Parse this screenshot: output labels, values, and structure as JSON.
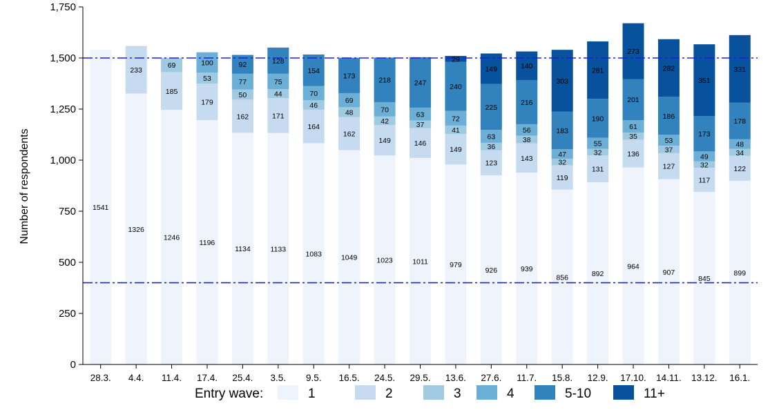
{
  "chart_data": {
    "type": "bar",
    "stacked": true,
    "ylabel": "Number of respondents",
    "xlabel": "",
    "ylim": [
      0,
      1750
    ],
    "yticks": [
      0,
      250,
      500,
      750,
      1000,
      1250,
      1500,
      1750
    ],
    "ytick_labels": [
      "0",
      "250",
      "500",
      "750",
      "1,000",
      "1,250",
      "1,500",
      "1,750"
    ],
    "reference_lines": [
      1500,
      400
    ],
    "categories": [
      "28.3.",
      "4.4.",
      "11.4.",
      "17.4.",
      "25.4.",
      "3.5.",
      "9.5.",
      "16.5.",
      "24.5.",
      "29.5.",
      "13.6.",
      "27.6.",
      "11.7.",
      "15.8.",
      "12.9.",
      "17.10.",
      "14.11.",
      "13.12.",
      "16.1."
    ],
    "legend_title": "Entry wave:",
    "legend_position": "bottom",
    "series": [
      {
        "name": "1",
        "color": "#eef3fc",
        "values": [
          1541,
          1326,
          1246,
          1196,
          1134,
          1133,
          1083,
          1049,
          1023,
          1011,
          979,
          926,
          939,
          856,
          892,
          964,
          907,
          845,
          899
        ]
      },
      {
        "name": "2",
        "color": "#c7dbf0",
        "values": [
          0,
          233,
          185,
          179,
          162,
          171,
          164,
          162,
          149,
          146,
          149,
          123,
          143,
          119,
          131,
          136,
          127,
          117,
          122
        ]
      },
      {
        "name": "3",
        "color": "#9fcae1",
        "values": [
          0,
          0,
          69,
          53,
          50,
          44,
          46,
          48,
          42,
          37,
          41,
          36,
          38,
          32,
          32,
          35,
          37,
          32,
          34
        ]
      },
      {
        "name": "4",
        "color": "#6baed6",
        "values": [
          0,
          0,
          0,
          100,
          77,
          75,
          70,
          69,
          70,
          63,
          72,
          63,
          56,
          47,
          55,
          61,
          53,
          49,
          48
        ]
      },
      {
        "name": "5-10",
        "color": "#3182bd",
        "values": [
          0,
          0,
          0,
          0,
          92,
          128,
          154,
          173,
          218,
          247,
          240,
          225,
          216,
          183,
          190,
          201,
          186,
          173,
          178
        ]
      },
      {
        "name": "11+",
        "color": "#08519c",
        "values": [
          0,
          0,
          0,
          0,
          0,
          0,
          0,
          0,
          0,
          0,
          29,
          149,
          140,
          303,
          281,
          273,
          282,
          351,
          331
        ]
      }
    ]
  }
}
